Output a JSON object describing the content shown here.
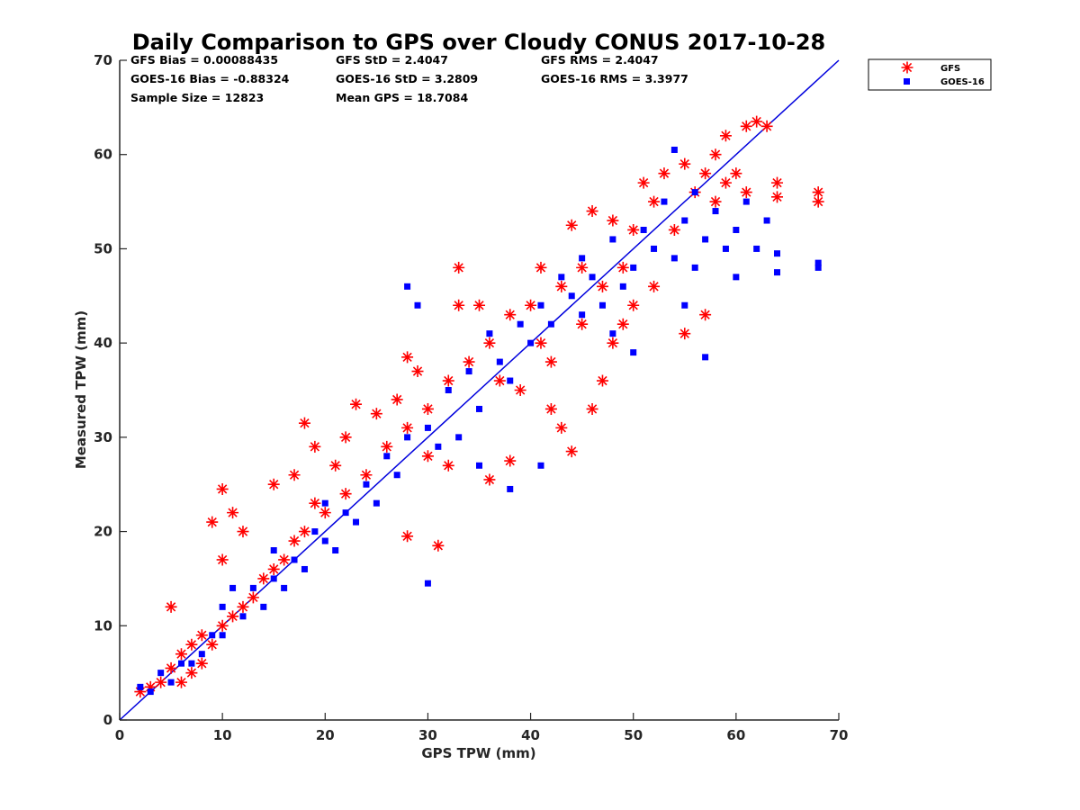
{
  "chart_data": {
    "type": "scatter",
    "title": "Daily Comparison to GPS over Cloudy CONUS 2017-10-28",
    "xlabel": "GPS TPW (mm)",
    "ylabel": "Measured TPW (mm)",
    "xlim": [
      0,
      70
    ],
    "ylim": [
      0,
      70
    ],
    "xticks": [
      "0",
      "10",
      "20",
      "30",
      "40",
      "50",
      "60",
      "70"
    ],
    "yticks": [
      "0",
      "10",
      "20",
      "30",
      "40",
      "50",
      "60",
      "70"
    ],
    "grid": false,
    "legend_position": "outside-top-right",
    "reference_line": {
      "x": [
        0,
        70
      ],
      "y": [
        0,
        70
      ],
      "color": "#0000dd"
    },
    "stats": {
      "gfs_bias": "GFS Bias = 0.00088435",
      "gfs_std": "GFS StD = 2.4047",
      "gfs_rms": "GFS RMS = 2.4047",
      "goes_bias": "GOES-16 Bias = -0.88324",
      "goes_std": "GOES-16 StD = 3.2809",
      "goes_rms": "GOES-16 RMS = 3.3977",
      "sample_size": "Sample Size = 12823",
      "mean_gps": "Mean GPS = 18.7084"
    },
    "series": [
      {
        "name": "GFS",
        "marker": "asterisk",
        "color": "#ff0000",
        "points": [
          [
            2,
            3
          ],
          [
            3,
            3.5
          ],
          [
            4,
            4
          ],
          [
            5,
            5.5
          ],
          [
            5,
            12
          ],
          [
            6,
            4
          ],
          [
            6,
            7
          ],
          [
            7,
            5
          ],
          [
            7,
            8
          ],
          [
            8,
            6
          ],
          [
            8,
            9
          ],
          [
            9,
            8
          ],
          [
            9,
            21
          ],
          [
            10,
            10
          ],
          [
            10,
            24.5
          ],
          [
            10,
            17
          ],
          [
            11,
            11
          ],
          [
            11,
            22
          ],
          [
            12,
            12
          ],
          [
            12,
            20
          ],
          [
            13,
            13
          ],
          [
            14,
            15
          ],
          [
            15,
            16
          ],
          [
            15,
            25
          ],
          [
            16,
            17
          ],
          [
            17,
            19
          ],
          [
            17,
            26
          ],
          [
            18,
            20
          ],
          [
            18,
            31.5
          ],
          [
            19,
            23
          ],
          [
            19,
            29
          ],
          [
            20,
            22
          ],
          [
            21,
            27
          ],
          [
            22,
            24
          ],
          [
            22,
            30
          ],
          [
            23,
            33.5
          ],
          [
            24,
            26
          ],
          [
            25,
            32.5
          ],
          [
            26,
            29
          ],
          [
            27,
            34
          ],
          [
            28,
            31
          ],
          [
            28,
            38.5
          ],
          [
            28,
            19.5
          ],
          [
            29,
            37
          ],
          [
            30,
            33
          ],
          [
            30,
            28
          ],
          [
            31,
            18.5
          ],
          [
            32,
            36
          ],
          [
            32,
            27
          ],
          [
            33,
            48
          ],
          [
            33,
            44
          ],
          [
            34,
            38
          ],
          [
            35,
            44
          ],
          [
            36,
            40
          ],
          [
            36,
            25.5
          ],
          [
            37,
            36
          ],
          [
            38,
            43
          ],
          [
            38,
            27.5
          ],
          [
            39,
            35
          ],
          [
            40,
            44
          ],
          [
            41,
            40
          ],
          [
            41,
            48
          ],
          [
            42,
            38
          ],
          [
            42,
            33
          ],
          [
            43,
            46
          ],
          [
            43,
            31
          ],
          [
            44,
            28.5
          ],
          [
            44,
            52.5
          ],
          [
            45,
            42
          ],
          [
            45,
            48
          ],
          [
            46,
            54
          ],
          [
            46,
            33
          ],
          [
            47,
            46
          ],
          [
            47,
            36
          ],
          [
            48,
            53
          ],
          [
            48,
            40
          ],
          [
            49,
            48
          ],
          [
            49,
            42
          ],
          [
            50,
            52
          ],
          [
            50,
            44
          ],
          [
            51,
            57
          ],
          [
            52,
            55
          ],
          [
            52,
            46
          ],
          [
            53,
            58
          ],
          [
            54,
            52
          ],
          [
            55,
            59
          ],
          [
            55,
            41
          ],
          [
            56,
            56
          ],
          [
            57,
            58
          ],
          [
            57,
            43
          ],
          [
            58,
            60
          ],
          [
            58,
            55
          ],
          [
            59,
            62
          ],
          [
            59,
            57
          ],
          [
            60,
            58
          ],
          [
            61,
            56
          ],
          [
            61,
            63
          ],
          [
            62,
            63.5
          ],
          [
            63,
            63
          ],
          [
            64,
            55.5
          ],
          [
            64,
            57
          ],
          [
            68,
            56
          ],
          [
            68,
            55
          ]
        ]
      },
      {
        "name": "GOES-16",
        "marker": "square",
        "color": "#0000ff",
        "points": [
          [
            2,
            3.5
          ],
          [
            3,
            3
          ],
          [
            4,
            5
          ],
          [
            5,
            4
          ],
          [
            6,
            6
          ],
          [
            7,
            6
          ],
          [
            8,
            7
          ],
          [
            9,
            9
          ],
          [
            10,
            9
          ],
          [
            10,
            12
          ],
          [
            11,
            14
          ],
          [
            12,
            11
          ],
          [
            13,
            14
          ],
          [
            14,
            12
          ],
          [
            15,
            15
          ],
          [
            15,
            18
          ],
          [
            16,
            14
          ],
          [
            17,
            17
          ],
          [
            18,
            16
          ],
          [
            19,
            20
          ],
          [
            20,
            19
          ],
          [
            20,
            23
          ],
          [
            21,
            18
          ],
          [
            22,
            22
          ],
          [
            23,
            21
          ],
          [
            24,
            25
          ],
          [
            25,
            23
          ],
          [
            26,
            28
          ],
          [
            27,
            26
          ],
          [
            28,
            30
          ],
          [
            28,
            46
          ],
          [
            29,
            44
          ],
          [
            30,
            31
          ],
          [
            30,
            14.5
          ],
          [
            31,
            29
          ],
          [
            32,
            35
          ],
          [
            33,
            30
          ],
          [
            34,
            37
          ],
          [
            35,
            33
          ],
          [
            35,
            27
          ],
          [
            36,
            41
          ],
          [
            37,
            38
          ],
          [
            38,
            36
          ],
          [
            38,
            24.5
          ],
          [
            39,
            42
          ],
          [
            40,
            40
          ],
          [
            41,
            44
          ],
          [
            41,
            27
          ],
          [
            42,
            42
          ],
          [
            43,
            47
          ],
          [
            44,
            45
          ],
          [
            45,
            43
          ],
          [
            45,
            49
          ],
          [
            46,
            47
          ],
          [
            47,
            44
          ],
          [
            48,
            51
          ],
          [
            48,
            41
          ],
          [
            49,
            46
          ],
          [
            50,
            48
          ],
          [
            50,
            39
          ],
          [
            51,
            52
          ],
          [
            52,
            50
          ],
          [
            53,
            55
          ],
          [
            54,
            49
          ],
          [
            54,
            60.5
          ],
          [
            55,
            53
          ],
          [
            55,
            44
          ],
          [
            56,
            56
          ],
          [
            56,
            48
          ],
          [
            57,
            51
          ],
          [
            57,
            38.5
          ],
          [
            58,
            54
          ],
          [
            59,
            50
          ],
          [
            60,
            52
          ],
          [
            60,
            47
          ],
          [
            61,
            55
          ],
          [
            62,
            50
          ],
          [
            63,
            53
          ],
          [
            64,
            49.5
          ],
          [
            64,
            47.5
          ],
          [
            68,
            48.5
          ],
          [
            68,
            48
          ]
        ]
      }
    ]
  }
}
